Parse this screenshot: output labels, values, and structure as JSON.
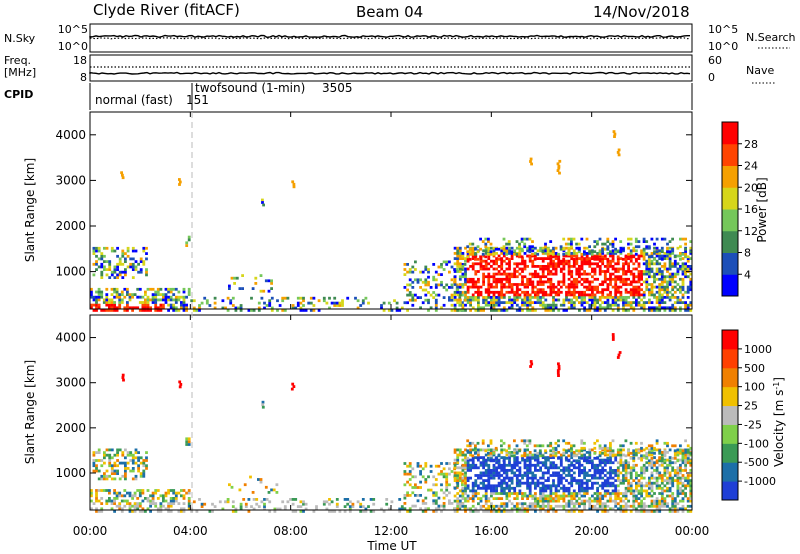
{
  "header": {
    "station": "Clyde River (fitACF)",
    "beam": "Beam 04",
    "date": "14/Nov/2018"
  },
  "nsky_panel": {
    "left_label": "N.Sky",
    "right_label": "N.Search",
    "left_ticks": [
      "10^5",
      "10^0"
    ],
    "right_ticks": [
      "10^5",
      "10^0"
    ]
  },
  "freq_panel": {
    "left_label_1": "Freq.",
    "left_label_2": "[MHz]",
    "right_label": "Nave",
    "left_ticks": [
      "18",
      "8"
    ],
    "right_ticks": [
      "60",
      "0"
    ]
  },
  "cpid_panel": {
    "label": "CPID",
    "modes": [
      {
        "name": "normal (fast)",
        "id": "151"
      },
      {
        "name": "twofsound (1-min)",
        "id": "3505"
      }
    ]
  },
  "chart_data": [
    {
      "type": "heatmap",
      "ylabel": "Slant Range [km]",
      "yticks": [
        "1000",
        "2000",
        "3000",
        "4000"
      ],
      "colorbar_label": "Power [dB]",
      "colorbar_ticks": [
        "28",
        "24",
        "20",
        "16",
        "12",
        "8",
        "4"
      ],
      "colors": [
        "#0000ff",
        "#1c4fb8",
        "#3f8a52",
        "#75c75a",
        "#d6d61a",
        "#f5a000",
        "#ff4400",
        "#ff0000"
      ]
    },
    {
      "type": "heatmap",
      "ylabel": "Slant Range [km]",
      "yticks": [
        "1000",
        "2000",
        "3000",
        "4000"
      ],
      "colorbar_label": "Velocity [m s^-1]",
      "colorbar_ticks": [
        "1000",
        "500",
        "100",
        "25",
        "-25",
        "-100",
        "-500",
        "-1000"
      ],
      "colors": [
        "#1f3fd6",
        "#1c6fa8",
        "#3a9a55",
        "#7fd04a",
        "#bbbbbb",
        "#f0c000",
        "#f08000",
        "#ff4000",
        "#ff0000"
      ]
    }
  ],
  "x_axis": {
    "label": "Time UT",
    "ticks": [
      "00:00",
      "04:00",
      "08:00",
      "12:00",
      "16:00",
      "20:00",
      "00:00"
    ]
  }
}
